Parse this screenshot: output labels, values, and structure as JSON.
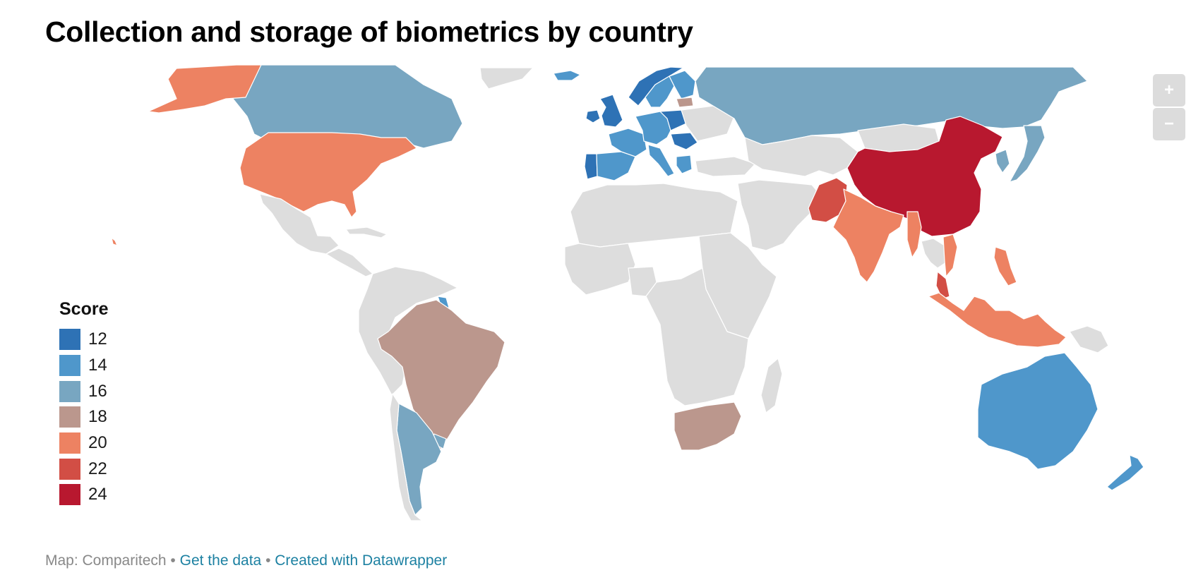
{
  "title": "Collection and storage of biometrics by country",
  "legend": {
    "title": "Score",
    "items": [
      {
        "label": "12",
        "color": "#2e72b5"
      },
      {
        "label": "14",
        "color": "#4f97cb"
      },
      {
        "label": "16",
        "color": "#78a6c1"
      },
      {
        "label": "18",
        "color": "#bb978d"
      },
      {
        "label": "20",
        "color": "#ed8262"
      },
      {
        "label": "22",
        "color": "#d24e45"
      },
      {
        "label": "24",
        "color": "#b8182f"
      }
    ]
  },
  "no_data_color": "#dddddd",
  "zoom": {
    "in_label": "+",
    "out_label": "−"
  },
  "footer": {
    "source": "Map: Comparitech",
    "separator": "•",
    "get_data": "Get the data",
    "created_with": "Created with Datawrapper"
  },
  "regions": [
    {
      "id": "canada",
      "score": 16
    },
    {
      "id": "alaska",
      "score": 20
    },
    {
      "id": "usa",
      "score": 20
    },
    {
      "id": "hawaii",
      "score": 20
    },
    {
      "id": "greenland",
      "score": null
    },
    {
      "id": "iceland",
      "score": 14
    },
    {
      "id": "mexico",
      "score": null
    },
    {
      "id": "central-america",
      "score": null
    },
    {
      "id": "cuba",
      "score": null
    },
    {
      "id": "south-america-north",
      "score": null
    },
    {
      "id": "guyana",
      "score": 14
    },
    {
      "id": "brazil",
      "score": 18
    },
    {
      "id": "argentina",
      "score": 16
    },
    {
      "id": "chile",
      "score": null
    },
    {
      "id": "uruguay",
      "score": 16
    },
    {
      "id": "ireland",
      "score": 12
    },
    {
      "id": "uk",
      "score": 12
    },
    {
      "id": "portugal",
      "score": 12
    },
    {
      "id": "spain",
      "score": 14
    },
    {
      "id": "france",
      "score": 14
    },
    {
      "id": "central-europe",
      "score": 14
    },
    {
      "id": "poland",
      "score": 12
    },
    {
      "id": "romania",
      "score": 12
    },
    {
      "id": "italy",
      "score": 14
    },
    {
      "id": "greece",
      "score": 14
    },
    {
      "id": "norway",
      "score": 12
    },
    {
      "id": "sweden",
      "score": 14
    },
    {
      "id": "finland",
      "score": 14
    },
    {
      "id": "baltic",
      "score": 18
    },
    {
      "id": "russia",
      "score": 16
    },
    {
      "id": "ukraine-belarus",
      "score": null
    },
    {
      "id": "turkey",
      "score": null
    },
    {
      "id": "central-asia",
      "score": null
    },
    {
      "id": "mongolia",
      "score": null
    },
    {
      "id": "china",
      "score": 24
    },
    {
      "id": "japan",
      "score": 16
    },
    {
      "id": "korea",
      "score": 16
    },
    {
      "id": "north-africa",
      "score": null
    },
    {
      "id": "west-africa",
      "score": null
    },
    {
      "id": "nigeria",
      "score": null
    },
    {
      "id": "east-africa",
      "score": null
    },
    {
      "id": "central-africa",
      "score": null
    },
    {
      "id": "south-africa",
      "score": 18
    },
    {
      "id": "madagascar",
      "score": null
    },
    {
      "id": "middle-east",
      "score": null
    },
    {
      "id": "pakistan",
      "score": 22
    },
    {
      "id": "india",
      "score": 20
    },
    {
      "id": "myanmar",
      "score": 20
    },
    {
      "id": "thailand",
      "score": null
    },
    {
      "id": "vietnam",
      "score": 20
    },
    {
      "id": "philippines",
      "score": 20
    },
    {
      "id": "malaysia",
      "score": 22
    },
    {
      "id": "indonesia",
      "score": 20
    },
    {
      "id": "papua",
      "score": null
    },
    {
      "id": "australia",
      "score": 14
    },
    {
      "id": "new-zealand",
      "score": 14
    }
  ]
}
